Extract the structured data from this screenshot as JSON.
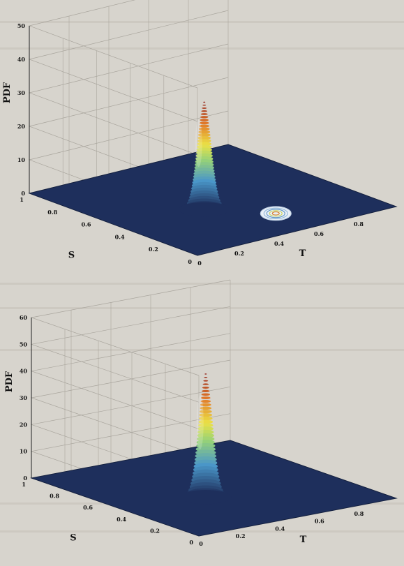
{
  "chart_data": [
    {
      "type": "surface3d",
      "zlabel": "PDF",
      "xlabel": "T",
      "ylabel": "S",
      "zlim": [
        0,
        50
      ],
      "zticks": [
        "0",
        "10",
        "20",
        "30",
        "40",
        "50"
      ],
      "xticks": [
        "0",
        "0.2",
        "0.4",
        "0.6",
        "0.8"
      ],
      "yticks": [
        "0",
        "0.2",
        "0.4",
        "0.6",
        "0.8",
        "1"
      ],
      "xlim": [
        0,
        1
      ],
      "ylim": [
        0,
        1
      ],
      "grid": true,
      "peak": {
        "t": 0.45,
        "s": 0.5,
        "pdf": 32
      },
      "contour_on_floor": true
    },
    {
      "type": "surface3d",
      "zlabel": "PDF",
      "xlabel": "T",
      "ylabel": "S",
      "zlim": [
        0,
        60
      ],
      "zticks": [
        "0",
        "10",
        "20",
        "30",
        "40",
        "50",
        "60"
      ],
      "xticks": [
        "0",
        "0.2",
        "0.4",
        "0.6",
        "0.8"
      ],
      "yticks": [
        "0",
        "0.2",
        "0.4",
        "0.6",
        "0.8",
        "1"
      ],
      "xlim": [
        0,
        1
      ],
      "ylim": [
        0,
        1
      ],
      "grid": true,
      "peak": {
        "t": 0.45,
        "s": 0.5,
        "pdf": 46
      },
      "contour_on_floor": false
    }
  ],
  "colors": {
    "floor": "#1e2f5c",
    "paper": "#d7d4cd",
    "grid": "#a9a59d"
  }
}
